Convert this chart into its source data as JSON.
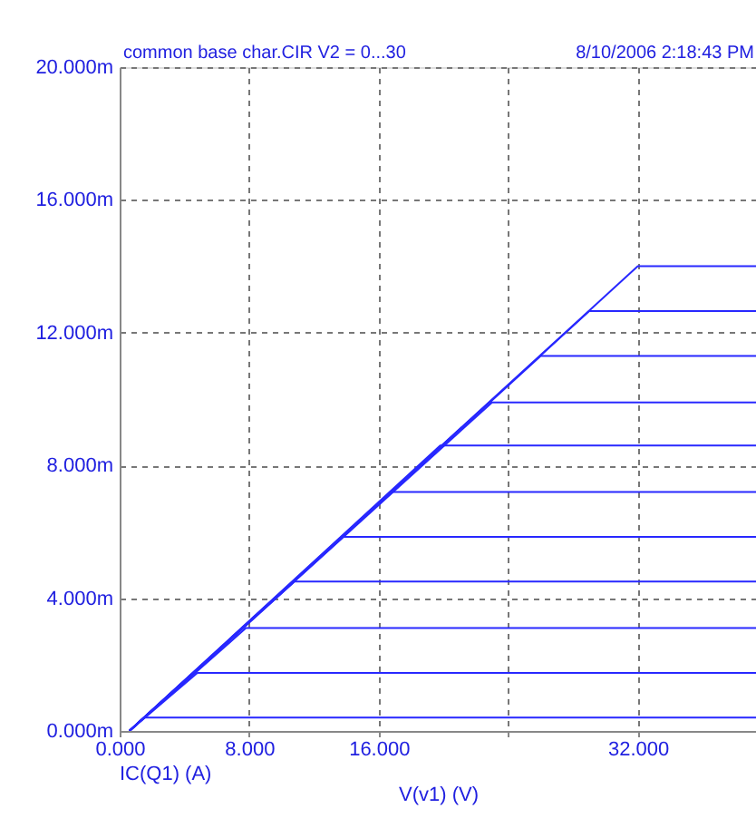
{
  "chart_data": {
    "type": "line",
    "xlabel": "V(v1) (V)",
    "annotations": [
      "common base char.CIR V2 = 0...30",
      "8/10/2006 2:18:43 PM",
      "IC(Q1) (A)"
    ],
    "xlim": [
      0,
      39.3
    ],
    "ylim": [
      0,
      20
    ],
    "xticks": [
      {
        "value": 0,
        "label": "0.000"
      },
      {
        "value": 8,
        "label": "8.000"
      },
      {
        "value": 16,
        "label": "16.000"
      },
      {
        "value": 24,
        "label": null
      },
      {
        "value": 32,
        "label": "32.000"
      }
    ],
    "yticks": [
      {
        "value": 0,
        "label": "0.000m"
      },
      {
        "value": 4,
        "label": "4.000m"
      },
      {
        "value": 8,
        "label": "8.000m"
      },
      {
        "value": 12,
        "label": "12.000m"
      },
      {
        "value": 16,
        "label": "16.000m"
      },
      {
        "value": 20,
        "label": "20.000m"
      }
    ],
    "grid": true,
    "line_style": "solid",
    "marker": "none",
    "series": [
      {
        "color": "#2828ff",
        "x": [
          0.6,
          1.5,
          39.3
        ],
        "values": [
          0,
          0.4,
          0.4
        ]
      },
      {
        "color": "#2828ff",
        "x": [
          0.6,
          4.8,
          39.3
        ],
        "values": [
          0,
          1.75,
          1.75
        ]
      },
      {
        "color": "#2828ff",
        "x": [
          0.6,
          7.8,
          39.3
        ],
        "values": [
          0,
          3.1,
          3.1
        ]
      },
      {
        "color": "#2828ff",
        "x": [
          0.6,
          10.8,
          39.3
        ],
        "values": [
          0,
          4.5,
          4.5
        ]
      },
      {
        "color": "#2828ff",
        "x": [
          0.6,
          13.8,
          39.3
        ],
        "values": [
          0,
          5.85,
          5.85
        ]
      },
      {
        "color": "#2828ff",
        "x": [
          0.6,
          16.8,
          39.3
        ],
        "values": [
          0,
          7.2,
          7.2
        ]
      },
      {
        "color": "#2828ff",
        "x": [
          0.6,
          19.8,
          39.3
        ],
        "values": [
          0,
          8.6,
          8.6
        ]
      },
      {
        "color": "#2828ff",
        "x": [
          0.6,
          23,
          39.3
        ],
        "values": [
          0,
          9.9,
          9.9
        ]
      },
      {
        "color": "#2828ff",
        "x": [
          0.6,
          26,
          39.3
        ],
        "values": [
          0,
          11.3,
          11.3
        ]
      },
      {
        "color": "#2828ff",
        "x": [
          0.6,
          29,
          39.3
        ],
        "values": [
          0,
          12.65,
          12.65
        ]
      },
      {
        "color": "#2828ff",
        "x": [
          0.6,
          32,
          39.3
        ],
        "values": [
          0,
          14.0,
          14.0
        ]
      }
    ]
  }
}
